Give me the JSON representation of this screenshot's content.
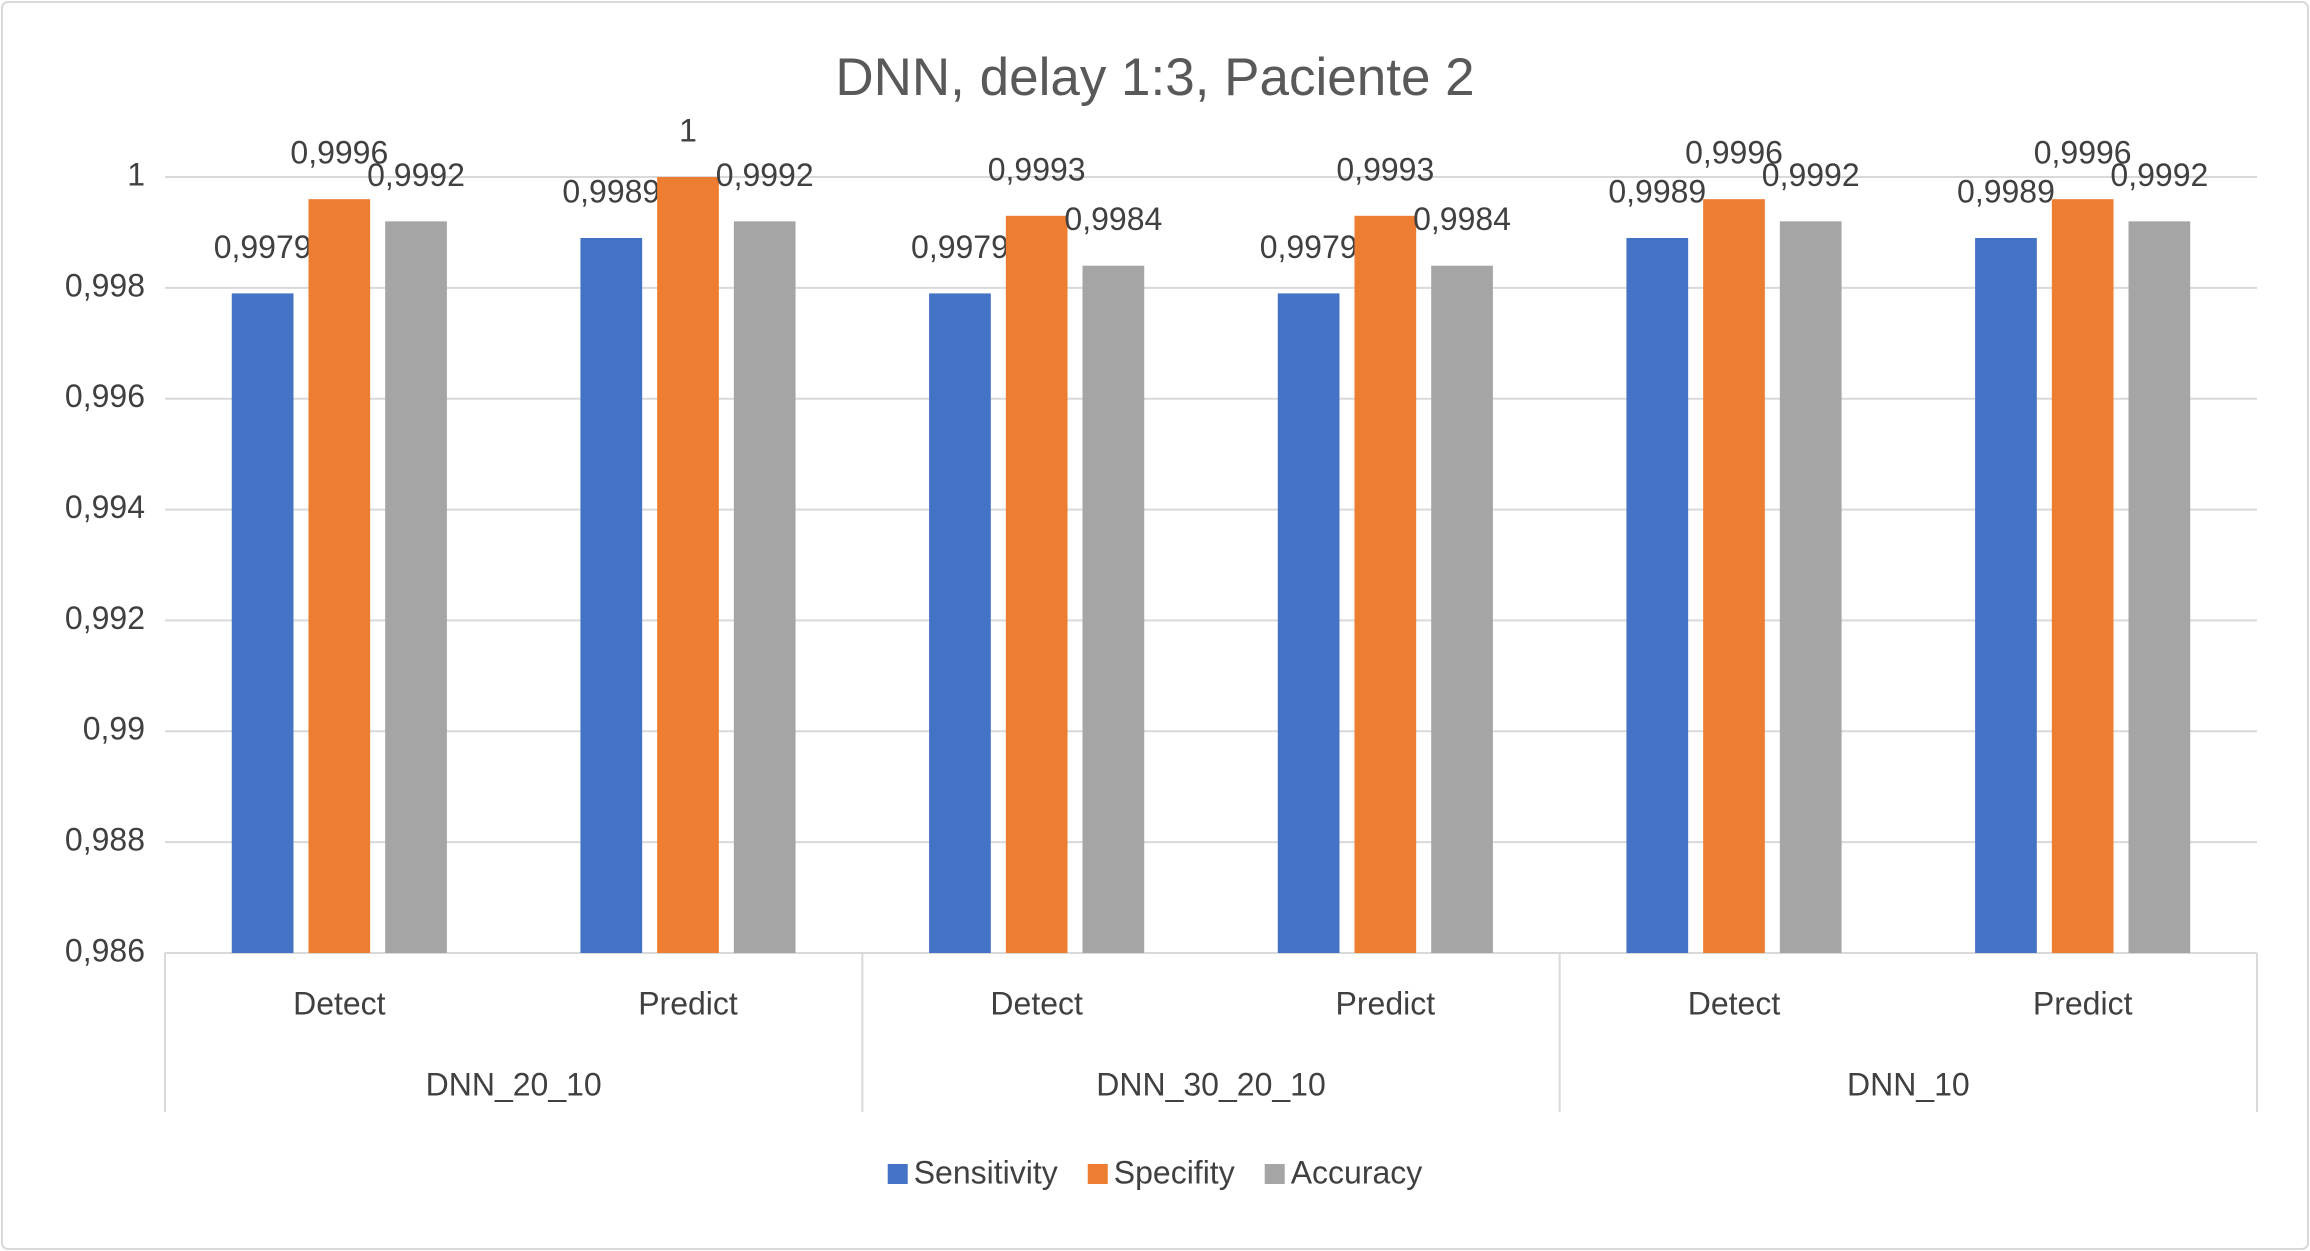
{
  "chart_data": {
    "type": "bar",
    "title": "DNN, delay 1:3, Paciente 2",
    "categories": [
      "Detect",
      "Predict",
      "Detect",
      "Predict",
      "Detect",
      "Predict"
    ],
    "groups": [
      "DNN_20_10",
      "DNN_30_20_10",
      "DNN_10"
    ],
    "series": [
      {
        "name": "Sensitivity",
        "color": "#4472c4",
        "values": [
          0.9979,
          0.9989,
          0.9979,
          0.9979,
          0.9989,
          0.9989
        ],
        "value_labels": [
          "0,9979",
          "0,9989",
          "0,9979",
          "0,9979",
          "0,9989",
          "0,9989"
        ]
      },
      {
        "name": "Specifity",
        "color": "#ed7d31",
        "values": [
          0.9996,
          1,
          0.9993,
          0.9993,
          0.9996,
          0.9996
        ],
        "value_labels": [
          "0,9996",
          "1",
          "0,9993",
          "0,9993",
          "0,9996",
          "0,9996"
        ]
      },
      {
        "name": "Accuracy",
        "color": "#a5a5a5",
        "values": [
          0.9992,
          0.9992,
          0.9984,
          0.9984,
          0.9992,
          0.9992
        ],
        "value_labels": [
          "0,9992",
          "0,9992",
          "0,9984",
          "0,9984",
          "0,9992",
          "0,9992"
        ]
      }
    ],
    "ylim": [
      0.986,
      1
    ],
    "yticks": [
      {
        "value": 0.986,
        "label": "0,986"
      },
      {
        "value": 0.988,
        "label": "0,988"
      },
      {
        "value": 0.99,
        "label": "0,99"
      },
      {
        "value": 0.992,
        "label": "0,992"
      },
      {
        "value": 0.994,
        "label": "0,994"
      },
      {
        "value": 0.996,
        "label": "0,996"
      },
      {
        "value": 0.998,
        "label": "0,998"
      },
      1
    ],
    "grid": true,
    "legend": "bottom"
  }
}
